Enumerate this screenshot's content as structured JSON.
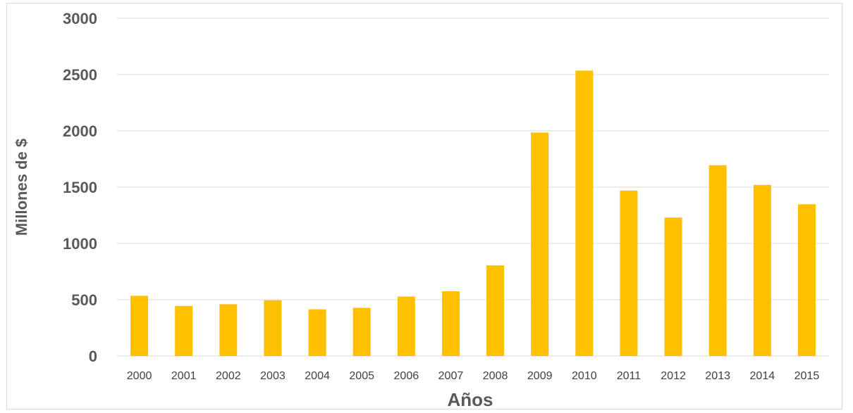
{
  "chart_data": {
    "type": "bar",
    "title": "",
    "xlabel": "Años",
    "ylabel": "Millones de $",
    "categories": [
      "2000",
      "2001",
      "2002",
      "2003",
      "2004",
      "2005",
      "2006",
      "2007",
      "2008",
      "2009",
      "2010",
      "2011",
      "2012",
      "2013",
      "2014",
      "2015"
    ],
    "values": [
      535,
      445,
      460,
      495,
      415,
      428,
      528,
      575,
      805,
      1985,
      2535,
      1470,
      1230,
      1695,
      1520,
      1348
    ],
    "ylim": [
      0,
      3000
    ],
    "yticks": [
      "0",
      "500",
      "1000",
      "1500",
      "2000",
      "2500",
      "3000"
    ],
    "grid": true,
    "legend": "none",
    "bar_color": "#FFC000",
    "grid_color": "#d9d9d9"
  }
}
